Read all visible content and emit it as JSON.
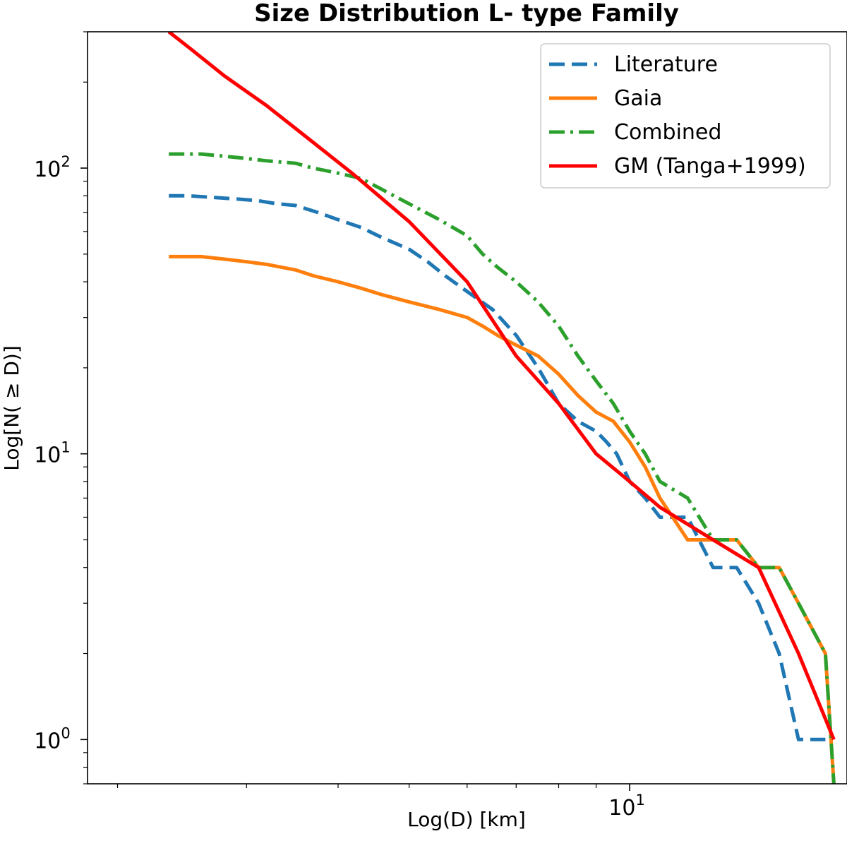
{
  "chart_data": {
    "type": "line",
    "title": "Size Distribution L- type Family",
    "xlabel": "Log(D) [km]",
    "ylabel": "Log[N( ≥ D)]",
    "xscale": "log",
    "yscale": "log",
    "xlim": [
      1.82,
      19.8
    ],
    "ylim": [
      0.7,
      300
    ],
    "grid": false,
    "legend_position": "top-right",
    "x_ticks": [
      {
        "value": 10,
        "base": "10",
        "exp": "1"
      }
    ],
    "y_ticks": [
      {
        "value": 1,
        "base": "10",
        "exp": "0"
      },
      {
        "value": 10,
        "base": "10",
        "exp": "1"
      },
      {
        "value": 100,
        "base": "10",
        "exp": "2"
      }
    ],
    "series": [
      {
        "name": "Literature",
        "color": "#1f77b4",
        "style": "dashed",
        "x": [
          2.35,
          2.5,
          2.7,
          2.9,
          3.1,
          3.3,
          3.5,
          3.75,
          4.0,
          4.3,
          4.6,
          5.0,
          5.3,
          5.6,
          6.0,
          6.5,
          7.0,
          7.5,
          8.0,
          8.5,
          9.0,
          9.3,
          9.6,
          10.0,
          10.5,
          11.0,
          12.0,
          13.0,
          14.0,
          15.0,
          16.0,
          17.0,
          18.5
        ],
        "y": [
          80,
          80,
          79,
          78,
          77,
          75,
          74,
          70,
          66,
          62,
          57,
          52,
          47,
          42,
          37,
          32,
          26,
          20,
          15,
          13,
          12,
          11,
          10,
          8,
          7,
          6,
          6,
          4,
          4,
          3,
          2,
          1,
          1
        ]
      },
      {
        "name": "Gaia",
        "color": "#ff7f0e",
        "style": "solid",
        "x": [
          2.35,
          2.6,
          2.8,
          3.0,
          3.2,
          3.5,
          3.7,
          4.0,
          4.3,
          4.6,
          5.0,
          5.5,
          6.0,
          6.3,
          6.6,
          7.0,
          7.5,
          8.0,
          8.5,
          9.0,
          9.5,
          10.0,
          10.5,
          11.0,
          12.0,
          13.0,
          14.0,
          15.0,
          16.0,
          17.0,
          18.5,
          19.0
        ],
        "y": [
          49,
          49,
          48,
          47,
          46,
          44,
          42,
          40,
          38,
          36,
          34,
          32,
          30,
          28,
          26,
          24,
          22,
          19,
          16,
          14,
          13,
          11,
          9,
          7,
          5,
          5,
          5,
          4,
          4,
          3,
          2,
          0.7
        ]
      },
      {
        "name": "Combined",
        "color": "#2ca02c",
        "style": "dashdot",
        "x": [
          2.35,
          2.6,
          2.8,
          3.0,
          3.2,
          3.5,
          3.7,
          4.0,
          4.3,
          4.6,
          5.0,
          5.5,
          6.0,
          6.3,
          6.6,
          7.0,
          7.5,
          8.0,
          8.5,
          9.0,
          9.5,
          10.0,
          10.5,
          11.0,
          12.0,
          13.0,
          14.0,
          15.0,
          16.0,
          17.0,
          18.5,
          19.0
        ],
        "y": [
          112,
          112,
          110,
          108,
          106,
          104,
          100,
          96,
          92,
          84,
          75,
          66,
          58,
          50,
          45,
          40,
          34,
          28,
          22,
          18,
          15,
          12,
          10,
          8,
          7,
          5,
          5,
          4,
          4,
          3,
          2,
          0.7
        ]
      },
      {
        "name": "GM (Tanga+1999)",
        "color": "#ff0000",
        "style": "solid",
        "x": [
          2.35,
          2.5,
          2.8,
          3.2,
          3.6,
          4.2,
          5.0,
          6.0,
          7.0,
          8.0,
          9.0,
          10.0,
          11.0,
          13.0,
          15.0,
          17.0,
          19.0
        ],
        "y": [
          300,
          265,
          210,
          165,
          130,
          95,
          65,
          40,
          22,
          15,
          10,
          8,
          6.5,
          5,
          4,
          2,
          1
        ]
      }
    ]
  }
}
